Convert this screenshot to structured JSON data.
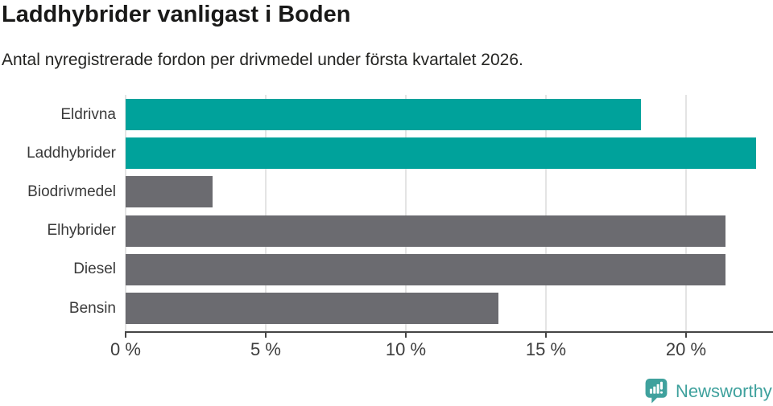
{
  "header": {
    "title": "Laddhybrider vanligast i Boden",
    "subtitle": "Antal nyregistrerade fordon per drivmedel under första kvartalet 2026."
  },
  "chart_data": {
    "type": "bar",
    "orientation": "horizontal",
    "title": "Laddhybrider vanligast i Boden",
    "subtitle": "Antal nyregistrerade fordon per drivmedel under första kvartalet 2026.",
    "categories": [
      "Eldrivna",
      "Laddhybrider",
      "Biodrivmedel",
      "Elhybrider",
      "Diesel",
      "Bensin"
    ],
    "values": [
      18.4,
      22.5,
      3.1,
      21.4,
      21.4,
      13.3
    ],
    "unit": "%",
    "xlabel": "",
    "ylabel": "",
    "xlim": [
      0,
      23.1
    ],
    "x_ticks": [
      0,
      5,
      10,
      15,
      20
    ],
    "x_tick_labels": [
      "0 %",
      "5 %",
      "10 %",
      "15 %",
      "20 %"
    ],
    "grid": true,
    "legend": "none",
    "highlight_color": "#00a29b",
    "default_color": "#6b6b70",
    "bar_colors": [
      "#00a29b",
      "#00a29b",
      "#6b6b70",
      "#6b6b70",
      "#6b6b70",
      "#6b6b70"
    ]
  },
  "footer": {
    "brand": "Newsworthy",
    "brand_color": "#3fa19d",
    "icon": "bar-chart-speech-bubble-icon"
  }
}
